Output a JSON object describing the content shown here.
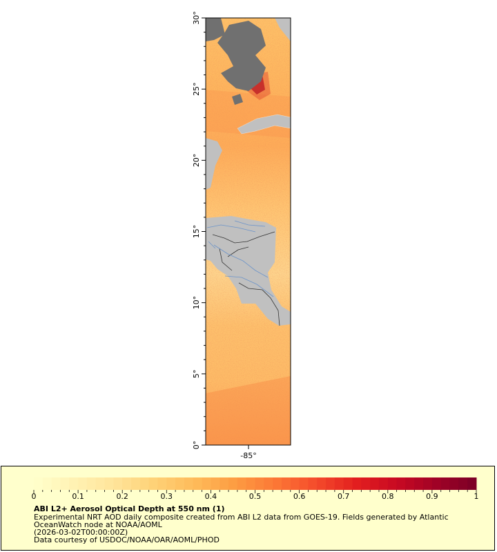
{
  "map": {
    "lat_ticks": [
      "0°",
      "5°",
      "10°",
      "15°",
      "20°",
      "25°",
      "30°"
    ],
    "lon_ticks": [
      "-85°"
    ],
    "colors": {
      "land": "#c0c0c0",
      "nodata": "#707070",
      "rivers": "#6b93c9",
      "borders": "#333333"
    }
  },
  "legend": {
    "colorbar_ticks": [
      "0",
      "0.1",
      "0.2",
      "0.3",
      "0.4",
      "0.5",
      "0.6",
      "0.7",
      "0.8",
      "0.9",
      "1"
    ],
    "colorscale": [
      "#ffffcc",
      "#fff2b3",
      "#ffe49a",
      "#fed176",
      "#febb5a",
      "#fd9c42",
      "#fc7836",
      "#f54c2b",
      "#e31f1f",
      "#c90a22",
      "#a00226",
      "#7a0026"
    ],
    "title": "ABI L2+ Aerosol Optical Depth at 550 nm (1)",
    "description_line1": "Experimental NRT AOD daily composite created from ABI L2 data from GOES-19. Fields generated by Atlantic",
    "description_line2": "OceanWatch node at NOAA/AOML",
    "time": "(2026-03-02T00:00:00Z)",
    "credit": "Data courtesy of USDOC/NOAA/OAR/AOML/PHOD"
  }
}
